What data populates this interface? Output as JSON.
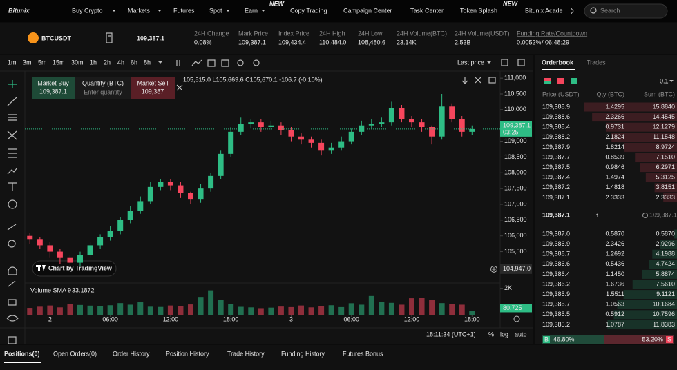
{
  "nav": {
    "logo": "Bitunix",
    "items": [
      "Buy Crypto",
      "Markets",
      "Futures",
      "Spot",
      "Earn",
      "Copy Trading",
      "Campaign Center",
      "Task Center",
      "Token Splash",
      "Bitunix Acade"
    ],
    "badges": [
      "NEW",
      "NEW"
    ],
    "search": "Search"
  },
  "ticker": {
    "symbol": "BTCUSDT",
    "price": "109,387.1",
    "stats": [
      {
        "label": "24H Change",
        "value": "0.08%"
      },
      {
        "label": "Mark Price",
        "value": "109,387.1"
      },
      {
        "label": "Index Price",
        "value": "109,434.4"
      },
      {
        "label": "24H High",
        "value": "110,484.0"
      },
      {
        "label": "24H Low",
        "value": "108,480.6"
      },
      {
        "label": "24H Volume(BTC)",
        "value": "23.14K"
      },
      {
        "label": "24H Volume(USDT)",
        "value": "2.53B"
      }
    ],
    "funding": {
      "label": "Funding Rate/Countdown",
      "rate": "0.0052%",
      "countdown": "/ 06:48:29"
    }
  },
  "toolbar": {
    "intervals": [
      "1m",
      "3m",
      "5m",
      "15m",
      "30m",
      "1h",
      "2h",
      "4h",
      "6h",
      "8h"
    ],
    "price_type": "Last price"
  },
  "order_panel": {
    "buy_label": "Market Buy",
    "buy_price": "109,387.1",
    "qty_label": "Quantity (BTC)",
    "qty_placeholder": "Enter quantity",
    "sell_label": "Market Sell",
    "sell_price": "109,387"
  },
  "chart_data": {
    "type": "candlestick",
    "ohlc_legend": "105,815.0  L105,669.6  C105,670.1  -106.7 (-0.10%)",
    "watermark": "Chart by TradingView",
    "x": [
      -2,
      -1,
      0,
      1,
      2,
      3,
      4,
      5,
      6,
      7,
      8,
      9,
      10,
      11,
      12,
      13,
      14,
      15,
      16,
      17,
      18,
      19,
      20,
      21,
      22,
      23,
      24,
      25,
      26,
      27,
      28,
      29,
      30,
      31,
      32,
      33,
      34,
      35,
      36,
      37,
      38,
      39,
      40,
      41,
      42
    ],
    "open": [
      106000,
      105900,
      105700,
      105500,
      105300,
      105150,
      105400,
      105700,
      105950,
      106150,
      106500,
      106800,
      107100,
      107550,
      107700,
      107600,
      107350,
      107150,
      107500,
      107900,
      108600,
      109300,
      109550,
      109600,
      109450,
      109500,
      109350,
      109150,
      109050,
      108950,
      108700,
      108800,
      109000,
      109300,
      109500,
      109550,
      109600,
      110050,
      109700,
      109600,
      109450,
      109150,
      110100,
      109700,
      109300
    ],
    "high": [
      106100,
      105950,
      105800,
      105600,
      105400,
      105500,
      105800,
      106050,
      106300,
      106600,
      106950,
      107250,
      107700,
      107800,
      107800,
      107700,
      107400,
      107650,
      108000,
      108700,
      109450,
      109750,
      109700,
      109700,
      109650,
      109600,
      109450,
      109250,
      109150,
      109050,
      108950,
      109150,
      109400,
      109650,
      109700,
      109750,
      110250,
      110150,
      109800,
      109700,
      109500,
      110500,
      110200,
      109800,
      109500
    ],
    "low": [
      105750,
      105600,
      105300,
      105100,
      104950,
      105050,
      105300,
      105600,
      105850,
      106050,
      106400,
      106700,
      107000,
      107450,
      107450,
      107200,
      107000,
      107050,
      107400,
      107800,
      108500,
      109200,
      109400,
      109300,
      109350,
      109200,
      109000,
      108900,
      108800,
      108550,
      108600,
      108700,
      108900,
      109200,
      109400,
      109450,
      109500,
      109600,
      109450,
      109300,
      108900,
      109050,
      109600,
      109150,
      109200
    ],
    "close": [
      105900,
      105700,
      105500,
      105300,
      105150,
      105400,
      105700,
      105950,
      106150,
      106500,
      106800,
      107100,
      107550,
      107700,
      107600,
      107350,
      107150,
      107500,
      107900,
      108600,
      109300,
      109550,
      109600,
      109450,
      109500,
      109350,
      109150,
      109050,
      108950,
      108700,
      108800,
      109000,
      109300,
      109500,
      109550,
      109600,
      110050,
      109700,
      109600,
      109450,
      109150,
      110100,
      109700,
      109300,
      109387.1
    ],
    "up_color": "#2ebd85",
    "down_color": "#f6465d",
    "xlim": [
      -2.5,
      44.8
    ],
    "xticks": [
      {
        "value": 0,
        "label": "2"
      },
      {
        "value": 6,
        "label": "06:00"
      },
      {
        "value": 12,
        "label": "12:00"
      },
      {
        "value": 18,
        "label": "18:00"
      },
      {
        "value": 24,
        "label": "3"
      },
      {
        "value": 30,
        "label": "06:00"
      },
      {
        "value": 36,
        "label": "12:00"
      },
      {
        "value": 42,
        "label": "18:00"
      }
    ],
    "ylim": [
      104550,
      111200
    ],
    "yticks": [
      {
        "value": 111000,
        "label": "111,000"
      },
      {
        "value": 110500,
        "label": "110,500"
      },
      {
        "value": 110000,
        "label": "110,000"
      },
      {
        "value": 109000,
        "label": "109,000"
      },
      {
        "value": 108500,
        "label": "108,500"
      },
      {
        "value": 108000,
        "label": "108,000"
      },
      {
        "value": 107500,
        "label": "107,500"
      },
      {
        "value": 107000,
        "label": "107,000"
      },
      {
        "value": 106500,
        "label": "106,500"
      },
      {
        "value": 106000,
        "label": "106,000"
      },
      {
        "value": 105500,
        "label": "105,500"
      }
    ],
    "last_price": {
      "value": 109387.1,
      "label": "109,387.1"
    },
    "countdown": "03:25",
    "crosshair_price": {
      "value": 104947,
      "label": "104,947.0"
    },
    "volume": {
      "label": "Volume SMA 9",
      "sma": "33.1872",
      "ylim": [
        0,
        2300
      ],
      "yticks": [
        {
          "value": 2000,
          "label": "2K"
        }
      ],
      "current": {
        "value": 80.725,
        "label": "80.725"
      },
      "values": [
        520,
        610,
        700,
        560,
        830,
        740,
        690,
        650,
        720,
        880,
        760,
        940,
        610,
        590,
        700,
        650,
        780,
        1350,
        1850,
        1100,
        820,
        600,
        560,
        500,
        540,
        620,
        580,
        700,
        560,
        640,
        720,
        580,
        870,
        760,
        1420,
        980,
        900,
        760,
        1250,
        1300,
        1100,
        880,
        820,
        760,
        300
      ]
    },
    "status": {
      "clock": "18:11:34 (UTC+1)",
      "percent": "%",
      "log": "log",
      "auto": "auto"
    }
  },
  "orderbook": {
    "tabs": [
      "Orderbook",
      "Trades"
    ],
    "precision": "0.1",
    "headers": [
      "Price (USDT)",
      "Qty (BTC)",
      "Sum (BTC)"
    ],
    "asks": [
      [
        "109,388.9",
        "1.4295",
        "15.8840"
      ],
      [
        "109,388.6",
        "2.3266",
        "14.4545"
      ],
      [
        "109,388.4",
        "0.9731",
        "12.1279"
      ],
      [
        "109,388.2",
        "2.1824",
        "11.1548"
      ],
      [
        "109,387.9",
        "1.8214",
        "8.9724"
      ],
      [
        "109,387.7",
        "0.8539",
        "7.1510"
      ],
      [
        "109,387.5",
        "0.9846",
        "6.2971"
      ],
      [
        "109,387.4",
        "1.4974",
        "5.3125"
      ],
      [
        "109,387.2",
        "1.4818",
        "3.8151"
      ],
      [
        "109,387.1",
        "2.3333",
        "2.3333"
      ]
    ],
    "mid": {
      "price": "109,387.1",
      "arrow": "↑",
      "mark": "109,387.1"
    },
    "bids": [
      [
        "109,387.0",
        "0.5870",
        "0.5870"
      ],
      [
        "109,386.9",
        "2.3426",
        "2.9296"
      ],
      [
        "109,386.7",
        "1.2692",
        "4.1988"
      ],
      [
        "109,386.6",
        "0.5436",
        "4.7424"
      ],
      [
        "109,386.4",
        "1.1450",
        "5.8874"
      ],
      [
        "109,386.2",
        "1.6736",
        "7.5610"
      ],
      [
        "109,385.9",
        "1.5511",
        "9.1121"
      ],
      [
        "109,385.7",
        "1.0563",
        "10.1684"
      ],
      [
        "109,385.5",
        "0.5912",
        "10.7596"
      ],
      [
        "109,385.2",
        "1.0787",
        "11.8383"
      ]
    ],
    "ratio": {
      "buy_letter": "B",
      "sell_letter": "S",
      "buy": {
        "value": 46.8,
        "label": "46.80%"
      },
      "sell": {
        "value": 53.2,
        "label": "53.20%"
      }
    }
  },
  "bottom_tabs": [
    "Positions(0)",
    "Open Orders(0)",
    "Order History",
    "Position History",
    "Trade History",
    "Funding History",
    "Futures Bonus"
  ]
}
